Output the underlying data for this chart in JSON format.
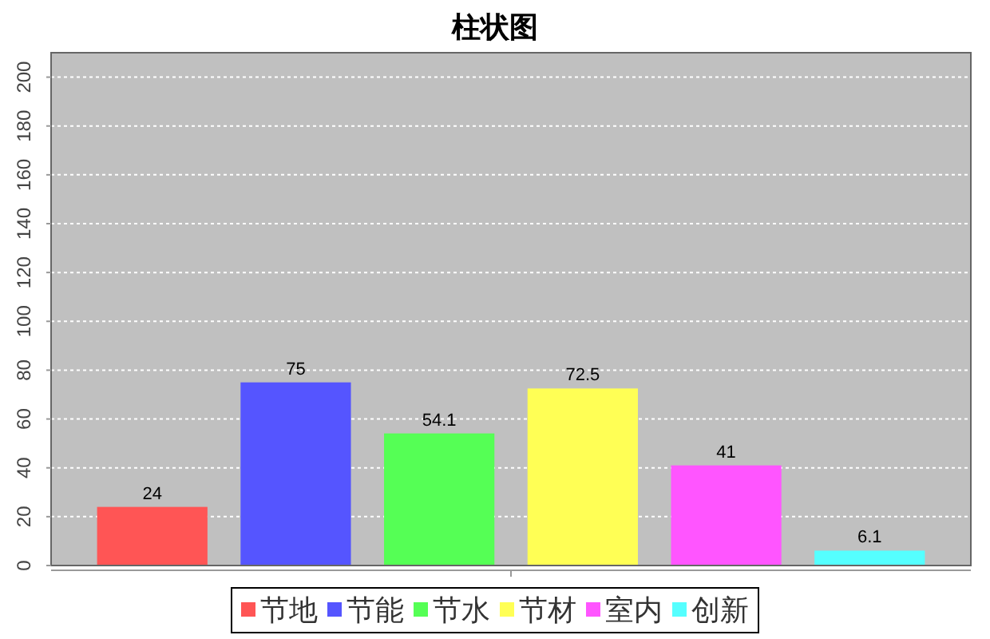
{
  "chart_data": {
    "type": "bar",
    "title": "柱状图",
    "categories": [
      null
    ],
    "series": [
      {
        "name": "节地",
        "color": "#ff5555",
        "values": [
          24
        ]
      },
      {
        "name": "节能",
        "color": "#5555ff",
        "values": [
          75
        ]
      },
      {
        "name": "节水",
        "color": "#55ff55",
        "values": [
          54.1
        ]
      },
      {
        "name": "节材",
        "color": "#ffff55",
        "values": [
          72.5
        ]
      },
      {
        "name": "室内",
        "color": "#ff55ff",
        "values": [
          41
        ]
      },
      {
        "name": "创新",
        "color": "#55ffff",
        "values": [
          6.1
        ]
      }
    ],
    "ylim": [
      0,
      210
    ],
    "yticks": [
      0,
      20,
      40,
      60,
      80,
      100,
      120,
      140,
      160,
      180,
      200
    ],
    "grid": "y",
    "legend": "bottom",
    "data_labels": true
  }
}
